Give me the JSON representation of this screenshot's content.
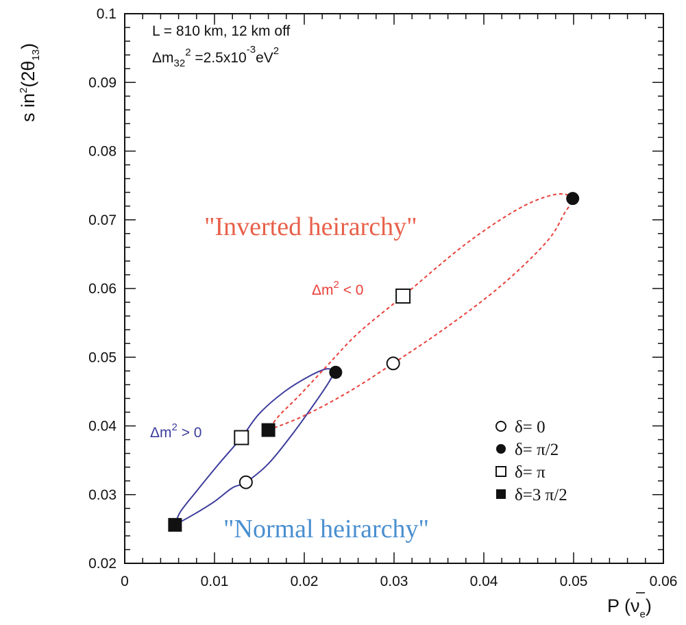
{
  "chart_data": {
    "type": "scatter",
    "title": "",
    "xlabel": "P (ν̄e)",
    "xlabel_parts": {
      "prefix": "P (",
      "nu": "ν",
      "sub": "e",
      "suffix": ")"
    },
    "ylabel_parts": {
      "base": "s in",
      "sup": "2",
      "mid": "(2θ",
      "sub": "13",
      "end": ")"
    },
    "xlim": [
      0,
      0.06
    ],
    "ylim": [
      0.02,
      0.1
    ],
    "x_ticks": [
      0,
      0.01,
      0.02,
      0.03,
      0.04,
      0.05,
      0.06
    ],
    "x_tick_labels": [
      "0",
      "0.01",
      "0.02",
      "0.03",
      "0.04",
      "0.05",
      "0.06"
    ],
    "y_ticks": [
      0.02,
      0.03,
      0.04,
      0.05,
      0.06,
      0.07,
      0.08,
      0.09,
      0.1
    ],
    "y_tick_labels": [
      "0.02",
      "0.03",
      "0.04",
      "0.05",
      "0.06",
      "0.07",
      "0.08",
      "0.09",
      "0.1"
    ],
    "grid": false,
    "legend_placement": "bottom-right",
    "colors": {
      "normal": "#3b3b9c",
      "inverted": "#e8403a",
      "normal_label": "#4a8fd0",
      "inverted_label": "#e8604a",
      "axis": "#111111"
    },
    "info_text": {
      "line1": "L  =  810  km,  12  km  off",
      "line2_a": "Δm",
      "line2_sub": "32",
      "line2_sup": "2",
      "line2_b": "  =2.5x10",
      "line2_exp": "-3",
      "line2_c": "eV",
      "line2_sup2": "2"
    },
    "series": [
      {
        "name": "\"Normal heirarchy\"",
        "dm_label": {
          "prefix": "Δm",
          "sup": "2",
          "suffix": " >  0"
        },
        "style": "solid",
        "points": [
          {
            "delta": "0",
            "marker": "open-circle",
            "x": 0.0135,
            "y": 0.0318
          },
          {
            "delta": "π/2",
            "marker": "filled-circle",
            "x": 0.0235,
            "y": 0.0478
          },
          {
            "delta": "π",
            "marker": "open-square",
            "x": 0.013,
            "y": 0.0383
          },
          {
            "delta": "3 π/2",
            "marker": "filled-square",
            "x": 0.0056,
            "y": 0.0256
          }
        ],
        "curve": [
          [
            0.0056,
            0.0256
          ],
          [
            0.0078,
            0.0272
          ],
          [
            0.01,
            0.029
          ],
          [
            0.012,
            0.031
          ],
          [
            0.0135,
            0.0318
          ],
          [
            0.016,
            0.0345
          ],
          [
            0.0185,
            0.0385
          ],
          [
            0.021,
            0.043
          ],
          [
            0.0228,
            0.0465
          ],
          [
            0.0232,
            0.0478
          ],
          [
            0.0225,
            0.0483
          ],
          [
            0.0205,
            0.0472
          ],
          [
            0.0178,
            0.045
          ],
          [
            0.015,
            0.0418
          ],
          [
            0.013,
            0.0383
          ],
          [
            0.0105,
            0.0345
          ],
          [
            0.008,
            0.0305
          ],
          [
            0.0062,
            0.0275
          ],
          [
            0.0056,
            0.0256
          ]
        ]
      },
      {
        "name": "\"Inverted heirarchy\"",
        "dm_label": {
          "prefix": "Δm",
          "sup": "2",
          "suffix": " <  0"
        },
        "style": "dashed",
        "points": [
          {
            "delta": "0",
            "marker": "open-circle",
            "x": 0.0299,
            "y": 0.0491
          },
          {
            "delta": "π/2",
            "marker": "filled-circle",
            "x": 0.0499,
            "y": 0.0731
          },
          {
            "delta": "π",
            "marker": "open-square",
            "x": 0.031,
            "y": 0.0589
          },
          {
            "delta": "3 π/2",
            "marker": "filled-square",
            "x": 0.016,
            "y": 0.0394
          }
        ],
        "curve": [
          [
            0.016,
            0.0394
          ],
          [
            0.02,
            0.0415
          ],
          [
            0.025,
            0.045
          ],
          [
            0.0299,
            0.0491
          ],
          [
            0.036,
            0.0545
          ],
          [
            0.042,
            0.0605
          ],
          [
            0.047,
            0.0668
          ],
          [
            0.049,
            0.071
          ],
          [
            0.0499,
            0.0731
          ],
          [
            0.048,
            0.0737
          ],
          [
            0.044,
            0.0717
          ],
          [
            0.038,
            0.0665
          ],
          [
            0.031,
            0.0589
          ],
          [
            0.026,
            0.0535
          ],
          [
            0.0225,
            0.0487
          ],
          [
            0.0195,
            0.0445
          ],
          [
            0.0172,
            0.0415
          ],
          [
            0.016,
            0.0394
          ]
        ]
      }
    ],
    "legend": [
      {
        "marker": "open-circle",
        "label": "δ=  0"
      },
      {
        "marker": "filled-circle",
        "label": "δ=  π/2"
      },
      {
        "marker": "open-square",
        "label": "δ=  π"
      },
      {
        "marker": "filled-square",
        "label": "δ=3 π/2"
      }
    ]
  }
}
